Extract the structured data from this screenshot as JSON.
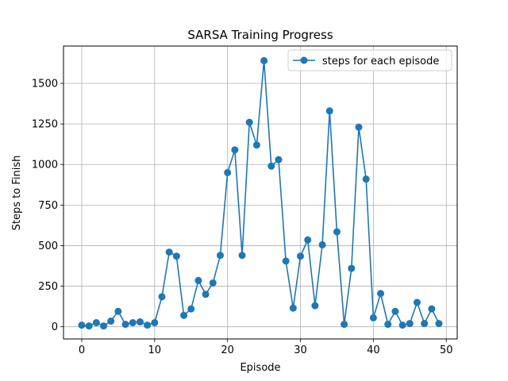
{
  "chart_data": {
    "type": "line",
    "title": "SARSA Training Progress",
    "xlabel": "Episode",
    "ylabel": "Steps to Finish",
    "xlim": [
      -2.5,
      51.5
    ],
    "ylim": [
      -75,
      1730
    ],
    "xticks": [
      0,
      10,
      20,
      30,
      40,
      50
    ],
    "yticks": [
      0,
      250,
      500,
      750,
      1000,
      1250,
      1500
    ],
    "grid": true,
    "legend_position": "top-right",
    "colors": {
      "series": "#1f77b4",
      "grid": "#b0b0b0",
      "axis": "#000000"
    },
    "series": [
      {
        "name": "steps for each episode",
        "marker": "circle",
        "x": [
          0,
          1,
          2,
          3,
          4,
          5,
          6,
          7,
          8,
          9,
          10,
          11,
          12,
          13,
          14,
          15,
          16,
          17,
          18,
          19,
          20,
          21,
          22,
          23,
          24,
          25,
          26,
          27,
          28,
          29,
          30,
          31,
          32,
          33,
          34,
          35,
          36,
          37,
          38,
          39,
          40,
          41,
          42,
          43,
          44,
          45,
          46,
          47,
          48,
          49
        ],
        "y": [
          10,
          5,
          25,
          5,
          35,
          95,
          15,
          25,
          30,
          10,
          25,
          185,
          460,
          435,
          70,
          110,
          285,
          200,
          270,
          440,
          950,
          1090,
          440,
          1260,
          1120,
          1640,
          990,
          1030,
          405,
          115,
          435,
          535,
          130,
          505,
          1330,
          585,
          15,
          360,
          1230,
          910,
          55,
          205,
          15,
          95,
          10,
          20,
          150,
          20,
          110,
          20
        ]
      }
    ]
  }
}
